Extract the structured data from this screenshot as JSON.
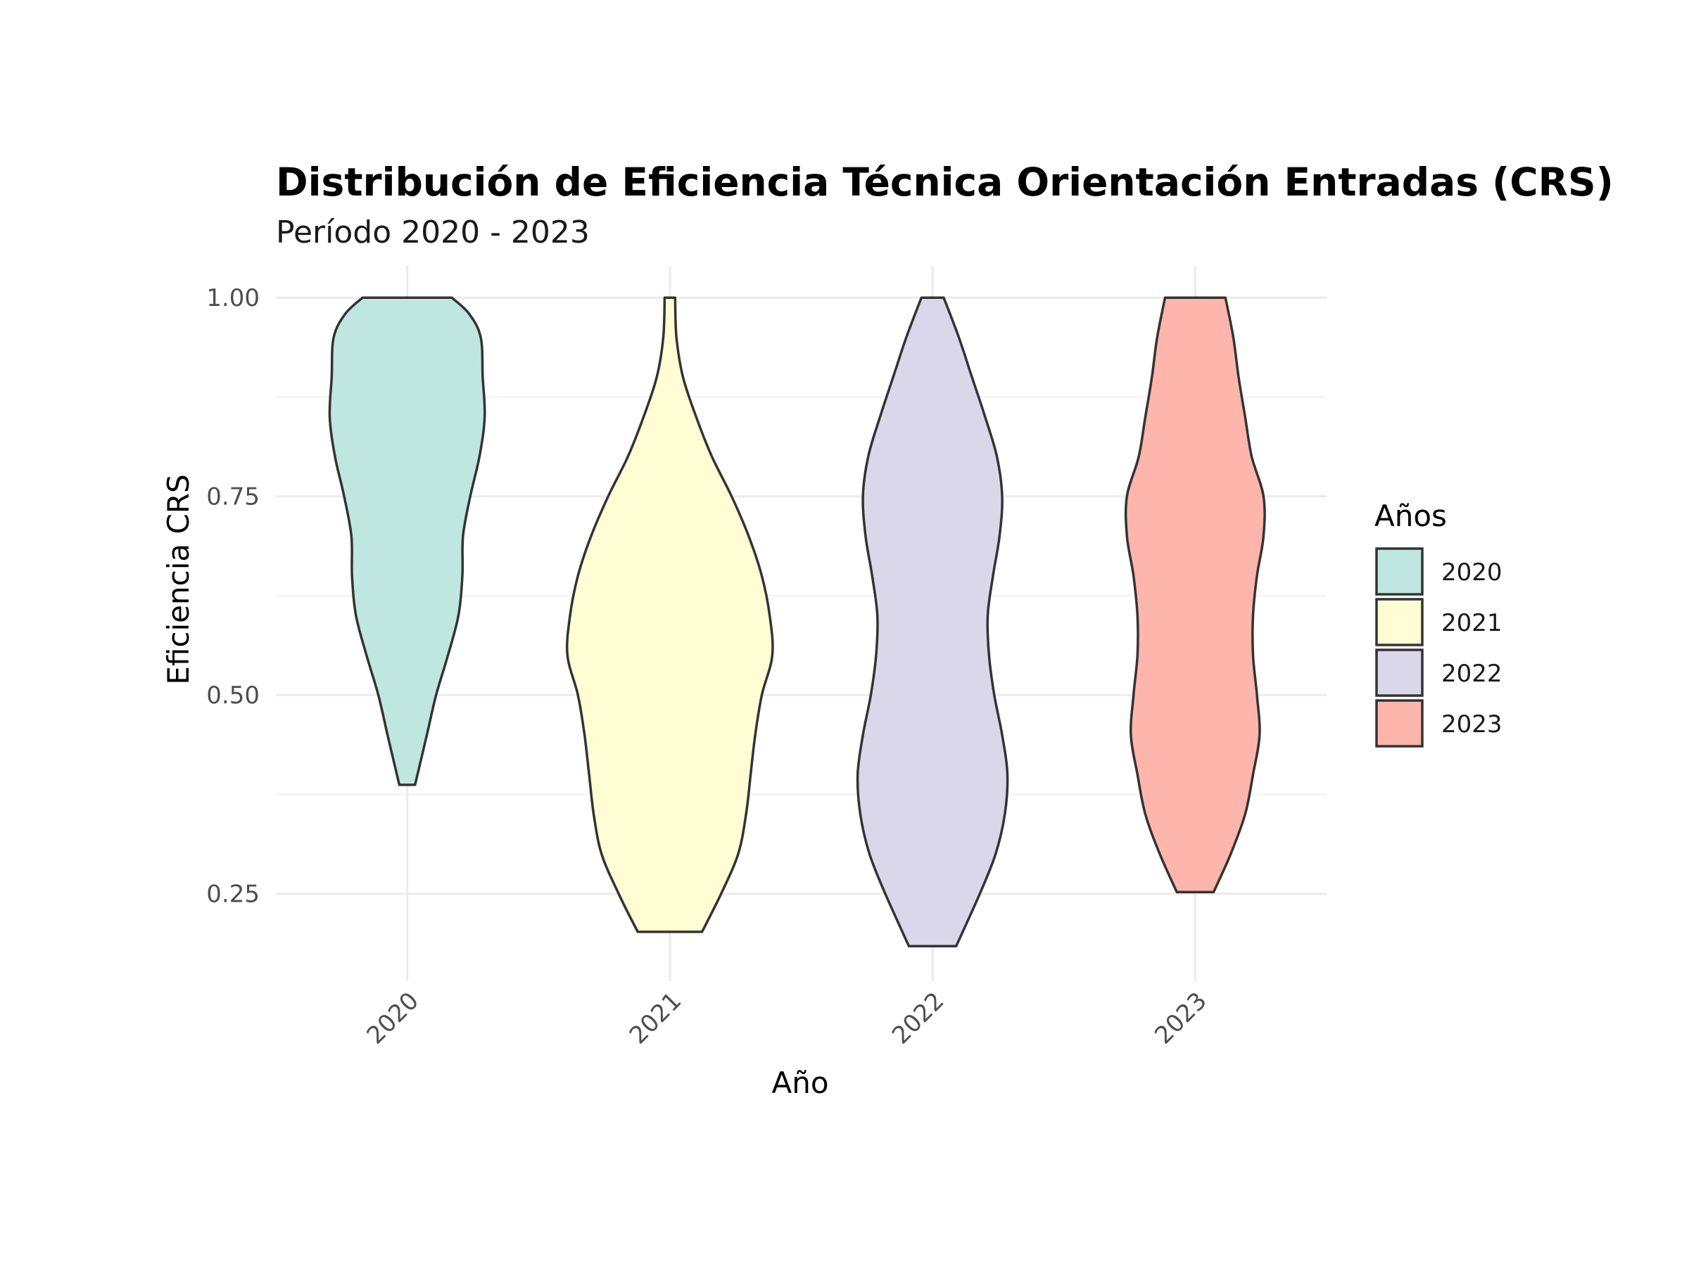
{
  "chart_data": {
    "type": "violin",
    "title": "Distribución de Eficiencia Técnica Orientación Entradas (CRS)",
    "subtitle": "Período 2020 - 2023",
    "xlabel": "Año",
    "ylabel": "Eficiencia CRS",
    "categories": [
      "2020",
      "2021",
      "2022",
      "2023"
    ],
    "ylim": [
      0.14,
      1.04
    ],
    "y_ticks": [
      0.25,
      0.5,
      0.75,
      1.0
    ],
    "y_tick_labels": [
      "0.25",
      "0.50",
      "0.75",
      "1.00"
    ],
    "grid": true,
    "legend": {
      "title": "Años",
      "position": "right",
      "entries": [
        "2020",
        "2021",
        "2022",
        "2023"
      ]
    },
    "colors": [
      "#bfe6df",
      "#fefdd4",
      "#d9d7e9",
      "#fdb5ac"
    ],
    "series": [
      {
        "category": "2020",
        "profile": [
          [
            0.387,
            0.06
          ],
          [
            0.45,
            0.15
          ],
          [
            0.5,
            0.22
          ],
          [
            0.55,
            0.31
          ],
          [
            0.6,
            0.39
          ],
          [
            0.65,
            0.42
          ],
          [
            0.7,
            0.425
          ],
          [
            0.75,
            0.48
          ],
          [
            0.8,
            0.55
          ],
          [
            0.85,
            0.59
          ],
          [
            0.9,
            0.575
          ],
          [
            0.95,
            0.56
          ],
          [
            0.98,
            0.47
          ],
          [
            1.0,
            0.34
          ]
        ]
      },
      {
        "category": "2021",
        "profile": [
          [
            0.202,
            0.245
          ],
          [
            0.25,
            0.39
          ],
          [
            0.3,
            0.52
          ],
          [
            0.35,
            0.58
          ],
          [
            0.4,
            0.615
          ],
          [
            0.45,
            0.65
          ],
          [
            0.5,
            0.7
          ],
          [
            0.55,
            0.78
          ],
          [
            0.6,
            0.76
          ],
          [
            0.65,
            0.7
          ],
          [
            0.7,
            0.6
          ],
          [
            0.75,
            0.47
          ],
          [
            0.8,
            0.32
          ],
          [
            0.85,
            0.2
          ],
          [
            0.9,
            0.1
          ],
          [
            0.95,
            0.05
          ],
          [
            1.0,
            0.04
          ]
        ]
      },
      {
        "category": "2022",
        "profile": [
          [
            0.184,
            0.18
          ],
          [
            0.25,
            0.36
          ],
          [
            0.3,
            0.48
          ],
          [
            0.35,
            0.55
          ],
          [
            0.4,
            0.57
          ],
          [
            0.45,
            0.53
          ],
          [
            0.5,
            0.47
          ],
          [
            0.55,
            0.43
          ],
          [
            0.6,
            0.42
          ],
          [
            0.65,
            0.46
          ],
          [
            0.7,
            0.51
          ],
          [
            0.75,
            0.53
          ],
          [
            0.8,
            0.49
          ],
          [
            0.85,
            0.4
          ],
          [
            0.9,
            0.3
          ],
          [
            0.95,
            0.2
          ],
          [
            1.0,
            0.085
          ]
        ]
      },
      {
        "category": "2023",
        "profile": [
          [
            0.252,
            0.14
          ],
          [
            0.3,
            0.27
          ],
          [
            0.35,
            0.38
          ],
          [
            0.4,
            0.44
          ],
          [
            0.45,
            0.49
          ],
          [
            0.5,
            0.47
          ],
          [
            0.55,
            0.44
          ],
          [
            0.6,
            0.44
          ],
          [
            0.65,
            0.47
          ],
          [
            0.7,
            0.52
          ],
          [
            0.75,
            0.52
          ],
          [
            0.8,
            0.43
          ],
          [
            0.85,
            0.38
          ],
          [
            0.9,
            0.33
          ],
          [
            0.95,
            0.29
          ],
          [
            1.0,
            0.23
          ]
        ]
      }
    ]
  }
}
